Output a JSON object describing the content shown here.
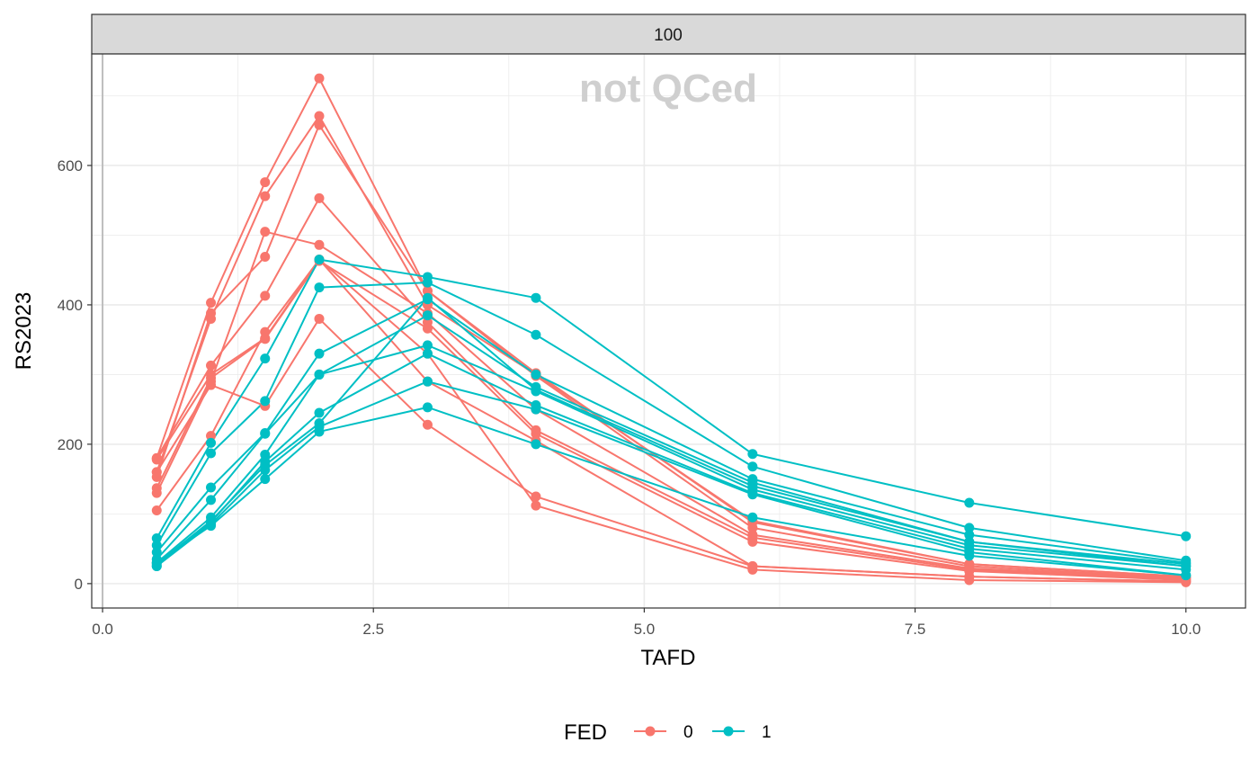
{
  "chart_data": {
    "type": "line",
    "facet_label": "100",
    "watermark": "not QCed",
    "xlabel": "TAFD",
    "ylabel": "RS2023",
    "xlim": [
      -0.1,
      10.55
    ],
    "ylim": [
      -35,
      760
    ],
    "x_ticks": [
      0.0,
      2.5,
      5.0,
      7.5,
      10.0
    ],
    "x_tick_labels": [
      "0.0",
      "2.5",
      "5.0",
      "7.5",
      "10.0"
    ],
    "y_ticks": [
      0,
      200,
      400,
      600
    ],
    "y_tick_labels": [
      "0",
      "200",
      "400",
      "600"
    ],
    "x_minor": [
      1.25,
      3.75,
      6.25,
      8.75
    ],
    "y_minor": [
      100,
      300,
      500,
      700
    ],
    "vline_x": 0,
    "x": [
      0.5,
      1,
      1.5,
      2,
      3,
      4,
      6,
      8,
      10
    ],
    "legend": {
      "title": "FED",
      "position": "bottom",
      "entries": [
        {
          "label": "0",
          "color": "#F8766D"
        },
        {
          "label": "1",
          "color": "#00BFC4"
        }
      ]
    },
    "series": [
      {
        "group": "0",
        "values": [
          180,
          403,
          576,
          725,
          420,
          302,
          88,
          28,
          10
        ]
      },
      {
        "group": "0",
        "values": [
          160,
          380,
          556,
          671,
          400,
          300,
          90,
          28,
          10
        ]
      },
      {
        "group": "0",
        "values": [
          153,
          388,
          469,
          658,
          420,
          298,
          80,
          25,
          8
        ]
      },
      {
        "group": "0",
        "values": [
          130,
          290,
          505,
          486,
          388,
          250,
          70,
          22,
          7
        ]
      },
      {
        "group": "0",
        "values": [
          180,
          313,
          413,
          553,
          375,
          220,
          66,
          20,
          6
        ]
      },
      {
        "group": "0",
        "values": [
          137,
          295,
          351,
          463,
          366,
          215,
          60,
          18,
          5
        ]
      },
      {
        "group": "0",
        "values": [
          105,
          212,
          361,
          465,
          290,
          205,
          25,
          10,
          3
        ]
      },
      {
        "group": "0",
        "values": [
          160,
          285,
          255,
          380,
          228,
          125,
          25,
          10,
          3
        ]
      },
      {
        "group": "0",
        "values": [
          178,
          300,
          352,
          465,
          330,
          112,
          20,
          5,
          2
        ]
      },
      {
        "group": "1",
        "values": [
          65,
          202,
          323,
          465,
          440,
          410,
          186,
          116,
          68
        ]
      },
      {
        "group": "1",
        "values": [
          55,
          187,
          262,
          425,
          432,
          357,
          168,
          80,
          33
        ]
      },
      {
        "group": "1",
        "values": [
          45,
          138,
          216,
          330,
          408,
          300,
          150,
          70,
          30
        ]
      },
      {
        "group": "1",
        "values": [
          35,
          120,
          215,
          300,
          385,
          282,
          145,
          60,
          28
        ]
      },
      {
        "group": "1",
        "values": [
          30,
          95,
          185,
          300,
          342,
          276,
          135,
          55,
          25
        ]
      },
      {
        "group": "1",
        "values": [
          25,
          88,
          175,
          245,
          330,
          256,
          130,
          50,
          20
        ]
      },
      {
        "group": "1",
        "values": [
          25,
          85,
          163,
          225,
          290,
          250,
          128,
          45,
          12
        ]
      },
      {
        "group": "1",
        "values": [
          30,
          83,
          150,
          218,
          253,
          200,
          95,
          40,
          12
        ]
      },
      {
        "group": "1",
        "values": [
          28,
          90,
          170,
          230,
          410,
          278,
          140,
          60,
          25
        ]
      }
    ]
  }
}
